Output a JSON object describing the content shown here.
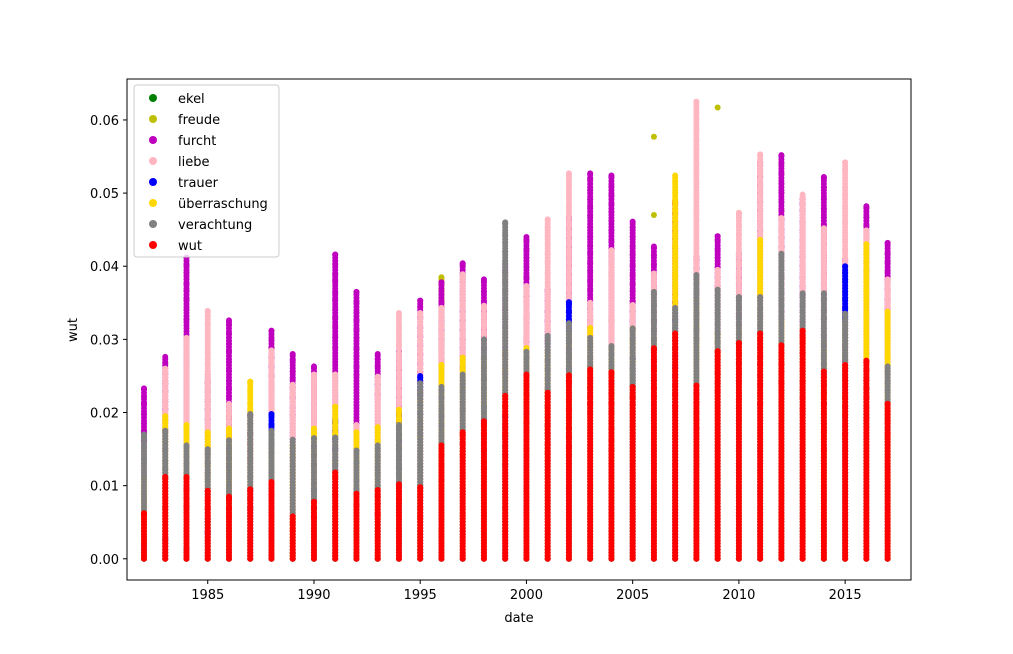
{
  "chart_data": {
    "type": "scatter",
    "xlabel": "date",
    "ylabel": "wut",
    "xlim": [
      1981.2,
      2018.1
    ],
    "ylim": [
      -0.0029,
      0.0656
    ],
    "xticks": [
      1985,
      1990,
      1995,
      2000,
      2005,
      2010,
      2015
    ],
    "yticks": [
      0.0,
      0.01,
      0.02,
      0.03,
      0.04,
      0.05,
      0.06
    ],
    "ytick_labels": [
      "0.00",
      "0.01",
      "0.02",
      "0.03",
      "0.04",
      "0.05",
      "0.06"
    ],
    "legend_position": "upper-left",
    "grid": false,
    "years": [
      1982,
      1983,
      1984,
      1985,
      1986,
      1987,
      1988,
      1989,
      1990,
      1991,
      1992,
      1993,
      1994,
      1995,
      1996,
      1997,
      1998,
      1999,
      2000,
      2001,
      2002,
      2003,
      2004,
      2005,
      2006,
      2007,
      2008,
      2009,
      2010,
      2011,
      2012,
      2013,
      2014,
      2015,
      2016,
      2017
    ],
    "series": [
      {
        "name": "ekel",
        "color": "#008000",
        "max": [
          0.0,
          0.0,
          0.0,
          0.0,
          0.0195,
          0.0,
          0.0008,
          0.0008,
          0.0,
          0.0,
          0.0,
          0.0,
          0.0,
          0.0,
          0.0,
          0.0,
          0.0,
          0.0,
          0.0,
          0.0,
          0.0,
          0.0,
          0.0,
          0.0,
          0.0,
          0.0,
          0.0,
          0.0,
          0.0,
          0.0,
          0.0,
          0.0,
          0.0,
          0.0,
          0.0,
          0.0
        ],
        "outliers": []
      },
      {
        "name": "freude",
        "color": "#bfbf00",
        "max": [
          0.0,
          0.0,
          0.0,
          0.0,
          0.0195,
          0.0,
          0.0,
          0.0,
          0.0,
          0.0,
          0.0,
          0.0,
          0.0,
          0.0,
          0.0385,
          0.0,
          0.0,
          0.0,
          0.0,
          0.0,
          0.0,
          0.0,
          0.0,
          0.0,
          0.0,
          0.0,
          0.0,
          0.0,
          0.0,
          0.0,
          0.0,
          0.0,
          0.0,
          0.0,
          0.0,
          0.0
        ],
        "outliers": [
          [
            2006,
            0.0577
          ],
          [
            2006,
            0.047
          ],
          [
            2009,
            0.0617
          ],
          [
            2008,
            0.038
          ],
          [
            2010,
            0.0473
          ],
          [
            2005,
            0.0352
          ],
          [
            2007,
            0.0352
          ],
          [
            2004,
            0.0325
          ],
          [
            2000,
            0.033
          ]
        ]
      },
      {
        "name": "furcht",
        "color": "#bf00bf",
        "max": [
          0.0233,
          0.0276,
          0.0412,
          0.0252,
          0.0326,
          0.0196,
          0.0312,
          0.028,
          0.0263,
          0.0416,
          0.0365,
          0.028,
          0.0285,
          0.0353,
          0.0378,
          0.0404,
          0.0382,
          0.0403,
          0.044,
          0.0368,
          0.0467,
          0.0527,
          0.0524,
          0.0461,
          0.0427,
          0.0489,
          0.0413,
          0.0441,
          0.0417,
          0.0542,
          0.0552,
          0.0492,
          0.0522,
          0.041,
          0.0482,
          0.0432
        ],
        "outliers": []
      },
      {
        "name": "liebe",
        "color": "#ffb6c1",
        "max": [
          0.0155,
          0.026,
          0.0302,
          0.0339,
          0.0212,
          0.0168,
          0.0285,
          0.0238,
          0.0252,
          0.0252,
          0.0183,
          0.0249,
          0.0336,
          0.0336,
          0.0343,
          0.0389,
          0.0346,
          0.0389,
          0.0373,
          0.0464,
          0.0527,
          0.035,
          0.0422,
          0.0347,
          0.039,
          0.0343,
          0.0625,
          0.0395,
          0.0473,
          0.0553,
          0.0466,
          0.0498,
          0.0452,
          0.0542,
          0.0449,
          0.0382
        ],
        "outliers": []
      },
      {
        "name": "trauer",
        "color": "#0000ff",
        "max": [
          0.002,
          0.0027,
          0.0014,
          0.0055,
          0.0,
          0.0095,
          0.0198,
          0.0,
          0.0095,
          0.019,
          0.0,
          0.0,
          0.0198,
          0.025,
          0.0,
          0.0,
          0.0209,
          0.0195,
          0.0,
          0.0,
          0.0351,
          0.0,
          0.0,
          0.0273,
          0.0,
          0.0336,
          0.0,
          0.0,
          0.0,
          0.0,
          0.0,
          0.0,
          0.0,
          0.04,
          0.0,
          0.0
        ],
        "outliers": []
      },
      {
        "name": "überraschung",
        "color": "#ffd700",
        "max": [
          0.0111,
          0.0195,
          0.0183,
          0.0173,
          0.0178,
          0.0242,
          0.0173,
          0.0155,
          0.0178,
          0.0208,
          0.0173,
          0.018,
          0.0203,
          0.0228,
          0.0265,
          0.0275,
          0.0275,
          0.0283,
          0.0288,
          0.0285,
          0.0309,
          0.0315,
          0.0289,
          0.0315,
          0.0302,
          0.0524,
          0.0354,
          0.0309,
          0.0315,
          0.0436,
          0.0324,
          0.0315,
          0.0296,
          0.0321,
          0.043,
          0.0338
        ],
        "outliers": []
      },
      {
        "name": "verachtung",
        "color": "#808080",
        "max": [
          0.017,
          0.0175,
          0.0155,
          0.015,
          0.0162,
          0.0198,
          0.0175,
          0.0163,
          0.0165,
          0.0165,
          0.0148,
          0.0155,
          0.0183,
          0.024,
          0.0235,
          0.0252,
          0.03,
          0.046,
          0.0283,
          0.0305,
          0.0322,
          0.0302,
          0.0291,
          0.0315,
          0.0365,
          0.0343,
          0.0388,
          0.0368,
          0.0358,
          0.0358,
          0.0417,
          0.0363,
          0.0363,
          0.0335,
          0.0258,
          0.0263
        ],
        "outliers": []
      },
      {
        "name": "wut",
        "color": "#ff0000",
        "max": [
          0.0062,
          0.0112,
          0.0112,
          0.0093,
          0.0085,
          0.0095,
          0.0105,
          0.0058,
          0.0078,
          0.0118,
          0.0089,
          0.0094,
          0.0102,
          0.0098,
          0.0155,
          0.0173,
          0.0188,
          0.0223,
          0.0252,
          0.0227,
          0.0251,
          0.0259,
          0.0255,
          0.0235,
          0.0288,
          0.0308,
          0.0237,
          0.0284,
          0.0295,
          0.0308,
          0.0292,
          0.0312,
          0.0256,
          0.0265,
          0.0271,
          0.0212
        ],
        "outliers": []
      }
    ]
  }
}
